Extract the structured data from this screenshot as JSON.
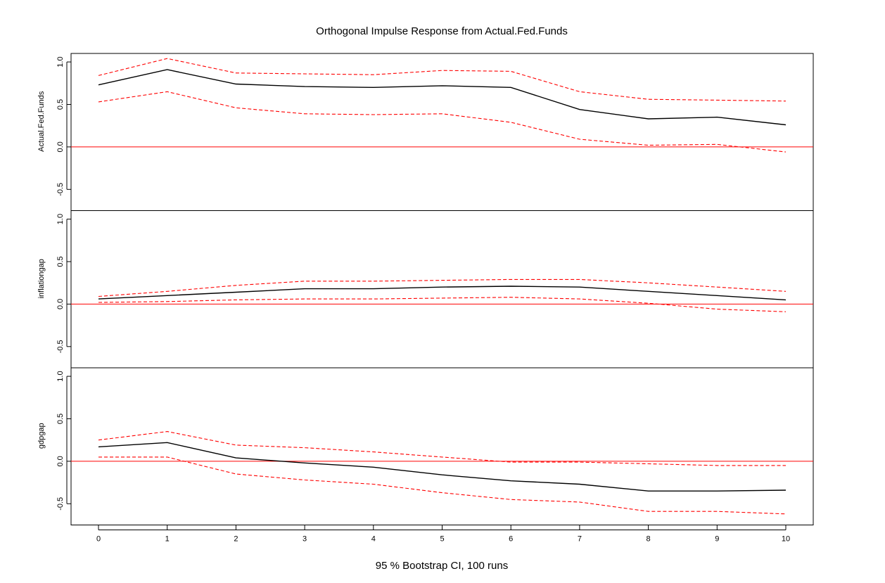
{
  "chart_data": {
    "type": "line",
    "title": "Orthogonal Impulse Response from Actual.Fed.Funds",
    "xlabel": "95 % Bootstrap CI,  100 runs",
    "x": [
      0,
      1,
      2,
      3,
      4,
      5,
      6,
      7,
      8,
      9,
      10
    ],
    "x_ticks": [
      "0",
      "1",
      "2",
      "3",
      "4",
      "5",
      "6",
      "7",
      "8",
      "9",
      "10"
    ],
    "xlim": [
      0,
      10
    ],
    "ylim": [
      -0.75,
      1.1
    ],
    "y_ticks": [
      "1.0",
      "0.5",
      "0.0",
      "-0.5"
    ],
    "y_tick_values": [
      1.0,
      0.5,
      0.0,
      -0.5
    ],
    "zero_line_color": "#ff0000",
    "response_color": "#000000",
    "ci_color": "#ff0000",
    "grid": false,
    "panels": [
      {
        "ylabel": "Actual.Fed.Funds",
        "series": [
          {
            "role": "response",
            "values": [
              0.73,
              0.91,
              0.74,
              0.71,
              0.7,
              0.72,
              0.7,
              0.44,
              0.33,
              0.35,
              0.26
            ]
          },
          {
            "role": "upper",
            "values": [
              0.84,
              1.04,
              0.87,
              0.86,
              0.85,
              0.9,
              0.89,
              0.65,
              0.56,
              0.55,
              0.54
            ]
          },
          {
            "role": "lower",
            "values": [
              0.53,
              0.65,
              0.46,
              0.39,
              0.38,
              0.39,
              0.29,
              0.09,
              0.02,
              0.03,
              -0.06
            ]
          }
        ]
      },
      {
        "ylabel": "inflationgap",
        "series": [
          {
            "role": "response",
            "values": [
              0.06,
              0.1,
              0.14,
              0.18,
              0.18,
              0.2,
              0.21,
              0.2,
              0.15,
              0.1,
              0.05
            ]
          },
          {
            "role": "upper",
            "values": [
              0.09,
              0.15,
              0.22,
              0.27,
              0.27,
              0.28,
              0.29,
              0.29,
              0.25,
              0.2,
              0.15
            ]
          },
          {
            "role": "lower",
            "values": [
              0.02,
              0.03,
              0.05,
              0.06,
              0.06,
              0.07,
              0.08,
              0.06,
              0.01,
              -0.06,
              -0.09
            ]
          }
        ]
      },
      {
        "ylabel": "gdpgap",
        "series": [
          {
            "role": "response",
            "values": [
              0.17,
              0.22,
              0.04,
              -0.02,
              -0.07,
              -0.16,
              -0.23,
              -0.27,
              -0.35,
              -0.35,
              -0.34
            ]
          },
          {
            "role": "upper",
            "values": [
              0.25,
              0.35,
              0.19,
              0.16,
              0.11,
              0.05,
              -0.01,
              -0.01,
              -0.03,
              -0.05,
              -0.05
            ]
          },
          {
            "role": "lower",
            "values": [
              0.05,
              0.05,
              -0.15,
              -0.22,
              -0.27,
              -0.37,
              -0.45,
              -0.48,
              -0.59,
              -0.59,
              -0.62
            ]
          }
        ]
      }
    ]
  }
}
